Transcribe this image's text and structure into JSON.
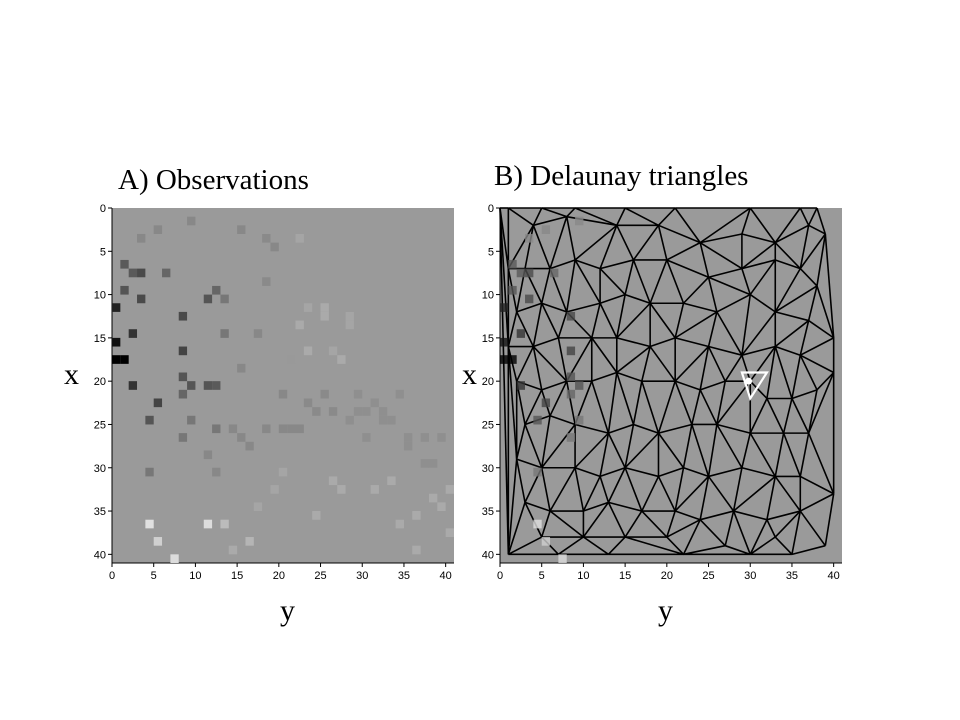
{
  "panels": {
    "a": {
      "title": "A) Observations",
      "xlabel": "y",
      "ylabel": "x"
    },
    "b": {
      "title": "B) Delaunay triangles",
      "xlabel": "y",
      "ylabel": "x"
    }
  },
  "chart_data": [
    {
      "type": "heatmap",
      "title": "A) Observations",
      "xlabel": "y",
      "ylabel": "x",
      "xlim": [
        0,
        41
      ],
      "ylim": [
        0,
        41
      ],
      "x_ticks": [
        "0",
        "5",
        "10",
        "15",
        "20",
        "25",
        "30",
        "35",
        "40"
      ],
      "y_ticks": [
        "0",
        "5",
        "10",
        "15",
        "20",
        "25",
        "30",
        "35",
        "40"
      ],
      "background_color": "#9a9a9a",
      "cells": [
        {
          "y": 0,
          "x": 11,
          "c": "#222222"
        },
        {
          "y": 0,
          "x": 15,
          "c": "#111111"
        },
        {
          "y": 0,
          "x": 17,
          "c": "#000000"
        },
        {
          "y": 1,
          "x": 17,
          "c": "#000000"
        },
        {
          "y": 1,
          "x": 6,
          "c": "#5a5a5a"
        },
        {
          "y": 1,
          "x": 9,
          "c": "#555555"
        },
        {
          "y": 2,
          "x": 14,
          "c": "#333333"
        },
        {
          "y": 2,
          "x": 20,
          "c": "#333333"
        },
        {
          "y": 2,
          "x": 7,
          "c": "#5a5a5a"
        },
        {
          "y": 3,
          "x": 3,
          "c": "#888888"
        },
        {
          "y": 3,
          "x": 7,
          "c": "#4a4a4a"
        },
        {
          "y": 3,
          "x": 10,
          "c": "#4a4a4a"
        },
        {
          "y": 4,
          "x": 24,
          "c": "#555555"
        },
        {
          "y": 4,
          "x": 30,
          "c": "#777777"
        },
        {
          "y": 4,
          "x": 36,
          "c": "#e0e0e0"
        },
        {
          "y": 5,
          "x": 2,
          "c": "#888888"
        },
        {
          "y": 5,
          "x": 38,
          "c": "#d0d0d0"
        },
        {
          "y": 5,
          "x": 22,
          "c": "#444444"
        },
        {
          "y": 6,
          "x": 7,
          "c": "#666666"
        },
        {
          "y": 7,
          "x": 40,
          "c": "#dcdcdc"
        },
        {
          "y": 8,
          "x": 12,
          "c": "#4a4a4a"
        },
        {
          "y": 8,
          "x": 16,
          "c": "#444444"
        },
        {
          "y": 8,
          "x": 19,
          "c": "#555555"
        },
        {
          "y": 8,
          "x": 21,
          "c": "#666666"
        },
        {
          "y": 8,
          "x": 26,
          "c": "#777777"
        },
        {
          "y": 9,
          "x": 1,
          "c": "#888888"
        },
        {
          "y": 9,
          "x": 20,
          "c": "#555555"
        },
        {
          "y": 9,
          "x": 24,
          "c": "#777777"
        },
        {
          "y": 11,
          "x": 10,
          "c": "#555555"
        },
        {
          "y": 11,
          "x": 20,
          "c": "#555555"
        },
        {
          "y": 11,
          "x": 28,
          "c": "#888888"
        },
        {
          "y": 11,
          "x": 36,
          "c": "#dddddd"
        },
        {
          "y": 12,
          "x": 9,
          "c": "#666666"
        },
        {
          "y": 12,
          "x": 20,
          "c": "#5a5a5a"
        },
        {
          "y": 12,
          "x": 25,
          "c": "#777777"
        },
        {
          "y": 12,
          "x": 30,
          "c": "#888888"
        },
        {
          "y": 13,
          "x": 10,
          "c": "#777777"
        },
        {
          "y": 13,
          "x": 14,
          "c": "#777777"
        },
        {
          "y": 13,
          "x": 36,
          "c": "#bbbbbb"
        },
        {
          "y": 14,
          "x": 25,
          "c": "#888888"
        },
        {
          "y": 14,
          "x": 39,
          "c": "#aaaaaa"
        },
        {
          "y": 15,
          "x": 2,
          "c": "#888888"
        },
        {
          "y": 15,
          "x": 18,
          "c": "#888888"
        },
        {
          "y": 15,
          "x": 26,
          "c": "#888888"
        },
        {
          "y": 16,
          "x": 27,
          "c": "#888888"
        },
        {
          "y": 16,
          "x": 38,
          "c": "#b5b5b5"
        },
        {
          "y": 17,
          "x": 14,
          "c": "#888888"
        },
        {
          "y": 17,
          "x": 34,
          "c": "#a5a5a5"
        },
        {
          "y": 18,
          "x": 3,
          "c": "#8a8a8a"
        },
        {
          "y": 18,
          "x": 8,
          "c": "#8a8a8a"
        },
        {
          "y": 18,
          "x": 25,
          "c": "#888888"
        },
        {
          "y": 19,
          "x": 4,
          "c": "#888888"
        },
        {
          "y": 19,
          "x": 32,
          "c": "#a5a5a5"
        },
        {
          "y": 20,
          "x": 21,
          "c": "#888888"
        },
        {
          "y": 20,
          "x": 25,
          "c": "#888888"
        },
        {
          "y": 20,
          "x": 30,
          "c": "#a5a5a5"
        },
        {
          "y": 21,
          "x": 17,
          "c": "#999999"
        },
        {
          "y": 21,
          "x": 25,
          "c": "#888888"
        },
        {
          "y": 22,
          "x": 3,
          "c": "#a5a5a5"
        },
        {
          "y": 22,
          "x": 13,
          "c": "#aaaaaa"
        },
        {
          "y": 22,
          "x": 25,
          "c": "#888888"
        },
        {
          "y": 23,
          "x": 11,
          "c": "#a5a5a5"
        },
        {
          "y": 23,
          "x": 16,
          "c": "#aaaaaa"
        },
        {
          "y": 23,
          "x": 22,
          "c": "#8a8a8a"
        },
        {
          "y": 24,
          "x": 23,
          "c": "#8a8a8a"
        },
        {
          "y": 24,
          "x": 35,
          "c": "#aaaaaa"
        },
        {
          "y": 25,
          "x": 11,
          "c": "#aaaaaa"
        },
        {
          "y": 25,
          "x": 12,
          "c": "#aaaaaa"
        },
        {
          "y": 25,
          "x": 21,
          "c": "#8a8a8a"
        },
        {
          "y": 26,
          "x": 16,
          "c": "#a5a5a5"
        },
        {
          "y": 26,
          "x": 23,
          "c": "#8a8a8a"
        },
        {
          "y": 26,
          "x": 31,
          "c": "#aaaaaa"
        },
        {
          "y": 27,
          "x": 17,
          "c": "#aaaaaa"
        },
        {
          "y": 27,
          "x": 32,
          "c": "#aaaaaa"
        },
        {
          "y": 28,
          "x": 12,
          "c": "#a5a5a5"
        },
        {
          "y": 28,
          "x": 13,
          "c": "#a5a5a5"
        },
        {
          "y": 28,
          "x": 24,
          "c": "#8f8f8f"
        },
        {
          "y": 29,
          "x": 21,
          "c": "#8f8f8f"
        },
        {
          "y": 29,
          "x": 23,
          "c": "#8f8f8f"
        },
        {
          "y": 30,
          "x": 23,
          "c": "#8f8f8f"
        },
        {
          "y": 30,
          "x": 26,
          "c": "#8f8f8f"
        },
        {
          "y": 31,
          "x": 22,
          "c": "#8f8f8f"
        },
        {
          "y": 31,
          "x": 32,
          "c": "#aaaaaa"
        },
        {
          "y": 32,
          "x": 23,
          "c": "#8f8f8f"
        },
        {
          "y": 32,
          "x": 24,
          "c": "#8f8f8f"
        },
        {
          "y": 33,
          "x": 24,
          "c": "#8f8f8f"
        },
        {
          "y": 33,
          "x": 31,
          "c": "#aaaaaa"
        },
        {
          "y": 34,
          "x": 21,
          "c": "#8f8f8f"
        },
        {
          "y": 34,
          "x": 36,
          "c": "#aaaaaa"
        },
        {
          "y": 35,
          "x": 26,
          "c": "#8f8f8f"
        },
        {
          "y": 35,
          "x": 27,
          "c": "#8f8f8f"
        },
        {
          "y": 36,
          "x": 35,
          "c": "#aaaaaa"
        },
        {
          "y": 36,
          "x": 39,
          "c": "#aaaaaa"
        },
        {
          "y": 37,
          "x": 26,
          "c": "#8f8f8f"
        },
        {
          "y": 37,
          "x": 29,
          "c": "#8f8f8f"
        },
        {
          "y": 38,
          "x": 29,
          "c": "#8f8f8f"
        },
        {
          "y": 38,
          "x": 33,
          "c": "#aaaaaa"
        },
        {
          "y": 39,
          "x": 26,
          "c": "#8f8f8f"
        },
        {
          "y": 39,
          "x": 34,
          "c": "#aaaaaa"
        },
        {
          "y": 40,
          "x": 32,
          "c": "#aaaaaa"
        },
        {
          "y": 40,
          "x": 37,
          "c": "#aaaaaa"
        }
      ]
    },
    {
      "type": "diagram",
      "title": "B) Delaunay triangles",
      "xlabel": "y",
      "ylabel": "x",
      "xlim": [
        0,
        41
      ],
      "ylim": [
        0,
        41
      ],
      "x_ticks": [
        "0",
        "5",
        "10",
        "15",
        "20",
        "25",
        "30",
        "35",
        "40"
      ],
      "y_ticks": [
        "0",
        "5",
        "10",
        "15",
        "20",
        "25",
        "30",
        "35",
        "40"
      ],
      "background_color": "#9a9a9a",
      "edge_color": "#000000",
      "highlight_color": "#ffffff",
      "points": [
        [
          0,
          0
        ],
        [
          1,
          0
        ],
        [
          5,
          0
        ],
        [
          9,
          0
        ],
        [
          15,
          0
        ],
        [
          21,
          0
        ],
        [
          30,
          0
        ],
        [
          36,
          0
        ],
        [
          38,
          0
        ],
        [
          39,
          3
        ],
        [
          40,
          15
        ],
        [
          40,
          19
        ],
        [
          40,
          33
        ],
        [
          39,
          39
        ],
        [
          35,
          40
        ],
        [
          30,
          40
        ],
        [
          22,
          40
        ],
        [
          13,
          40
        ],
        [
          7,
          40
        ],
        [
          1,
          40
        ],
        [
          4,
          2
        ],
        [
          8,
          1
        ],
        [
          14,
          2
        ],
        [
          19,
          2
        ],
        [
          24,
          4
        ],
        [
          29,
          3
        ],
        [
          33,
          4
        ],
        [
          37,
          2
        ],
        [
          1,
          7
        ],
        [
          3,
          7
        ],
        [
          6,
          7
        ],
        [
          9,
          6
        ],
        [
          12,
          7
        ],
        [
          16,
          6
        ],
        [
          20,
          6
        ],
        [
          25,
          8
        ],
        [
          29,
          7
        ],
        [
          33,
          6
        ],
        [
          36,
          7
        ],
        [
          38,
          9
        ],
        [
          2,
          12
        ],
        [
          5,
          11
        ],
        [
          8,
          12
        ],
        [
          12,
          11
        ],
        [
          15,
          10
        ],
        [
          18,
          11
        ],
        [
          22,
          11
        ],
        [
          26,
          12
        ],
        [
          30,
          10
        ],
        [
          33,
          12
        ],
        [
          37,
          13
        ],
        [
          1,
          16
        ],
        [
          4,
          16
        ],
        [
          7,
          15
        ],
        [
          11,
          15
        ],
        [
          14,
          15
        ],
        [
          18,
          16
        ],
        [
          21,
          15
        ],
        [
          25,
          16
        ],
        [
          29,
          17
        ],
        [
          33,
          16
        ],
        [
          36,
          17
        ],
        [
          2,
          20
        ],
        [
          5,
          21
        ],
        [
          8,
          20
        ],
        [
          11,
          20
        ],
        [
          14,
          19
        ],
        [
          17,
          20
        ],
        [
          21,
          20
        ],
        [
          24,
          21
        ],
        [
          27,
          20
        ],
        [
          30,
          20
        ],
        [
          32,
          22
        ],
        [
          35,
          22
        ],
        [
          38,
          21
        ],
        [
          3,
          25
        ],
        [
          6,
          24
        ],
        [
          9,
          25
        ],
        [
          13,
          26
        ],
        [
          16,
          25
        ],
        [
          19,
          26
        ],
        [
          23,
          25
        ],
        [
          26,
          25
        ],
        [
          30,
          26
        ],
        [
          34,
          26
        ],
        [
          37,
          26
        ],
        [
          2,
          29
        ],
        [
          5,
          30
        ],
        [
          9,
          30
        ],
        [
          12,
          31
        ],
        [
          15,
          30
        ],
        [
          19,
          31
        ],
        [
          22,
          30
        ],
        [
          25,
          31
        ],
        [
          29,
          30
        ],
        [
          33,
          31
        ],
        [
          36,
          31
        ],
        [
          3,
          34
        ],
        [
          6,
          35
        ],
        [
          10,
          35
        ],
        [
          13,
          34
        ],
        [
          17,
          35
        ],
        [
          21,
          35
        ],
        [
          24,
          36
        ],
        [
          28,
          35
        ],
        [
          32,
          36
        ],
        [
          36,
          35
        ],
        [
          5,
          38
        ],
        [
          10,
          38
        ],
        [
          15,
          38
        ],
        [
          20,
          38
        ],
        [
          27,
          39
        ],
        [
          33,
          38
        ]
      ],
      "highlight_triangle": [
        [
          29,
          19
        ],
        [
          32,
          19
        ],
        [
          30,
          22
        ]
      ],
      "highlight_point": [
        29.8,
        20
      ]
    }
  ]
}
